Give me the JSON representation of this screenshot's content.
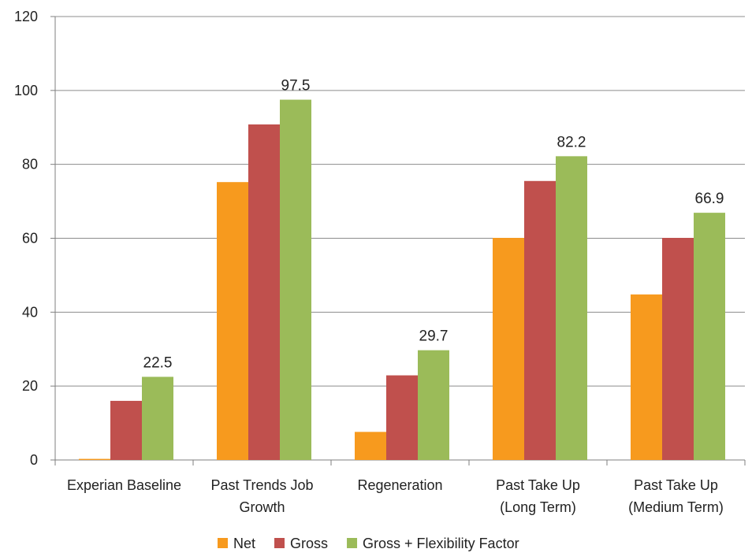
{
  "colors": {
    "net": "#F79A1E",
    "gross": "#C0504D",
    "flex": "#9BBB59",
    "grid": "#8C8C8C"
  },
  "chart_data": {
    "type": "bar",
    "title": "",
    "xlabel": "",
    "ylabel": "",
    "ylim": [
      0,
      120
    ],
    "yticks": [
      0,
      20,
      40,
      60,
      80,
      100,
      120
    ],
    "grid": true,
    "legend_position": "bottom",
    "categories": [
      [
        "Experian Baseline"
      ],
      [
        "Past Trends Job",
        "Growth"
      ],
      [
        "Regeneration"
      ],
      [
        "Past Take Up",
        "(Long Term)"
      ],
      [
        "Past Take Up",
        "(Medium Term)"
      ]
    ],
    "series": [
      {
        "name": "Net",
        "color_key": "net",
        "values": [
          0.3,
          75.2,
          7.6,
          60.1,
          44.8
        ],
        "show_labels": false
      },
      {
        "name": "Gross",
        "color_key": "gross",
        "values": [
          16.0,
          90.8,
          22.9,
          75.5,
          60.1
        ],
        "show_labels": false
      },
      {
        "name": "Gross + Flexibility Factor",
        "color_key": "flex",
        "values": [
          22.5,
          97.5,
          29.7,
          82.2,
          66.9
        ],
        "show_labels": true
      }
    ],
    "data_labels": [
      "22.5",
      "97.5",
      "29.7",
      "82.2",
      "66.9"
    ]
  }
}
